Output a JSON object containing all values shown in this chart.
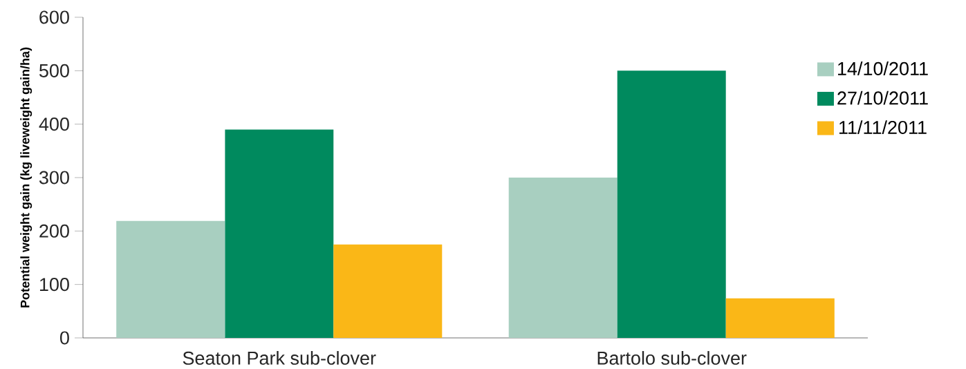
{
  "chart_data": {
    "type": "bar",
    "ylabel": "Potential weight gain (kg liveweight gain/ha)",
    "categories": [
      "Seaton Park sub-clover",
      "Bartolo sub-clover"
    ],
    "series": [
      {
        "name": "14/10/2011",
        "color": "#a8cfc0",
        "values": [
          219,
          300
        ]
      },
      {
        "name": "27/10/2011",
        "color": "#008a5e",
        "values": [
          390,
          500
        ]
      },
      {
        "name": "11/11/2011",
        "color": "#fab717",
        "values": [
          175,
          74
        ]
      }
    ],
    "ylim": [
      0,
      600
    ],
    "yticks": [
      0,
      100,
      200,
      300,
      400,
      500,
      600
    ],
    "grid": false,
    "legend": "right"
  }
}
